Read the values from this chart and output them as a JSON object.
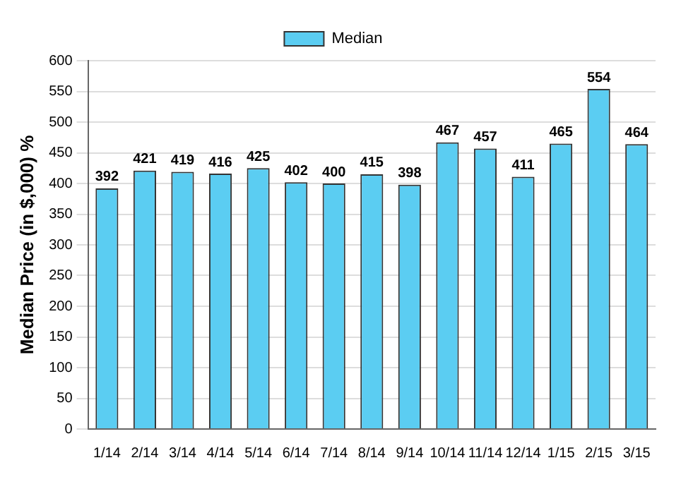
{
  "chart_data": {
    "type": "bar",
    "ylabel": "Median Price (in $,000) %",
    "categories": [
      "1/14",
      "2/14",
      "3/14",
      "4/14",
      "5/14",
      "6/14",
      "7/14",
      "8/14",
      "9/14",
      "10/14",
      "11/14",
      "12/14",
      "1/15",
      "2/15",
      "3/15"
    ],
    "series": [
      {
        "name": "Median",
        "color": "#5bcdf2",
        "values": [
          392,
          421,
          419,
          416,
          425,
          402,
          400,
          415,
          398,
          467,
          457,
          411,
          465,
          554,
          464
        ]
      }
    ],
    "ylim": [
      0,
      600
    ],
    "yticks": [
      0,
      50,
      100,
      150,
      200,
      250,
      300,
      350,
      400,
      450,
      500,
      550,
      600
    ],
    "grid": "y",
    "legend": "top",
    "data_labels": true
  }
}
